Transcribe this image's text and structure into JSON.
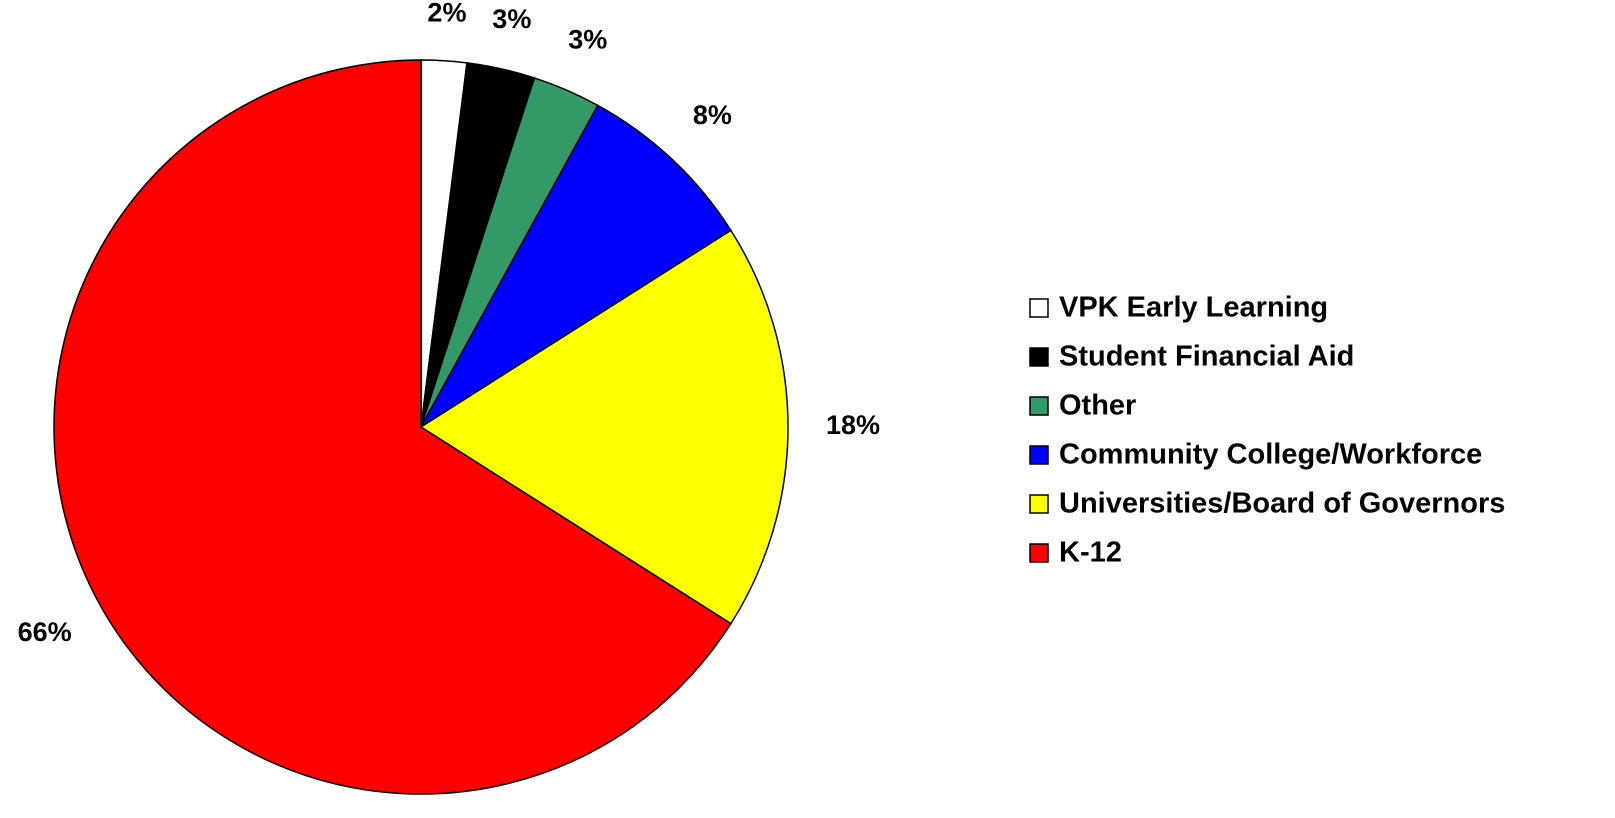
{
  "chart_data": {
    "type": "pie",
    "categories": [
      "VPK Early Learning",
      "Student Financial Aid",
      "Other",
      "Community College/Workforce",
      "Universities/Board of Governors",
      "K-12"
    ],
    "values": [
      2,
      3,
      3,
      8,
      18,
      66
    ],
    "value_labels": [
      "2%",
      "3%",
      "3%",
      "8%",
      "18%",
      "66%"
    ],
    "colors": [
      "#ffffff",
      "#000000",
      "#339966",
      "#0000ff",
      "#ffff00",
      "#ff0000"
    ],
    "legend": "right"
  }
}
